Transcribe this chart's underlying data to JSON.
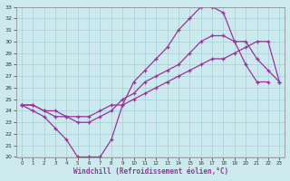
{
  "xlabel": "Windchill (Refroidissement éolien,°C)",
  "ylabel": "",
  "bg_color": "#cce9ee",
  "line_color": "#993399",
  "grid_color": "#aad4dd",
  "xlim": [
    -0.5,
    23.5
  ],
  "ylim": [
    20,
    33
  ],
  "xticks": [
    0,
    1,
    2,
    3,
    4,
    5,
    6,
    7,
    8,
    9,
    10,
    11,
    12,
    13,
    14,
    15,
    16,
    17,
    18,
    19,
    20,
    21,
    22,
    23
  ],
  "yticks": [
    20,
    21,
    22,
    23,
    24,
    25,
    26,
    27,
    28,
    29,
    30,
    31,
    32,
    33
  ],
  "series": [
    {
      "x": [
        0,
        1,
        2,
        3,
        4,
        5,
        6,
        7,
        8,
        9,
        10,
        11,
        12,
        13,
        14,
        15,
        16,
        17,
        18,
        19,
        20,
        21,
        22
      ],
      "y": [
        24.5,
        24.0,
        23.5,
        22.5,
        21.5,
        20.0,
        20.0,
        20.0,
        21.5,
        24.5,
        26.5,
        27.5,
        28.5,
        29.5,
        31.0,
        32.0,
        33.0,
        33.0,
        32.5,
        30.0,
        28.0,
        26.5,
        26.5
      ]
    },
    {
      "x": [
        0,
        1,
        2,
        3,
        4,
        5,
        6,
        7,
        8,
        9,
        10,
        11,
        12,
        13,
        14,
        15,
        16,
        17,
        18,
        19,
        20,
        21,
        22,
        23
      ],
      "y": [
        24.5,
        24.5,
        24.0,
        24.0,
        23.5,
        23.5,
        23.5,
        24.0,
        24.5,
        24.5,
        25.0,
        25.5,
        26.0,
        26.5,
        27.0,
        27.5,
        28.0,
        28.5,
        28.5,
        29.0,
        29.5,
        30.0,
        30.0,
        26.5
      ]
    },
    {
      "x": [
        0,
        1,
        2,
        3,
        4,
        5,
        6,
        7,
        8,
        9,
        10,
        11,
        12,
        13,
        14,
        15,
        16,
        17,
        18,
        19,
        20,
        21,
        22,
        23
      ],
      "y": [
        24.5,
        24.5,
        24.0,
        23.5,
        23.5,
        23.0,
        23.0,
        23.5,
        24.0,
        25.0,
        25.5,
        26.5,
        27.0,
        27.5,
        28.0,
        29.0,
        30.0,
        30.5,
        30.5,
        30.0,
        30.0,
        28.5,
        27.5,
        26.5
      ]
    }
  ]
}
